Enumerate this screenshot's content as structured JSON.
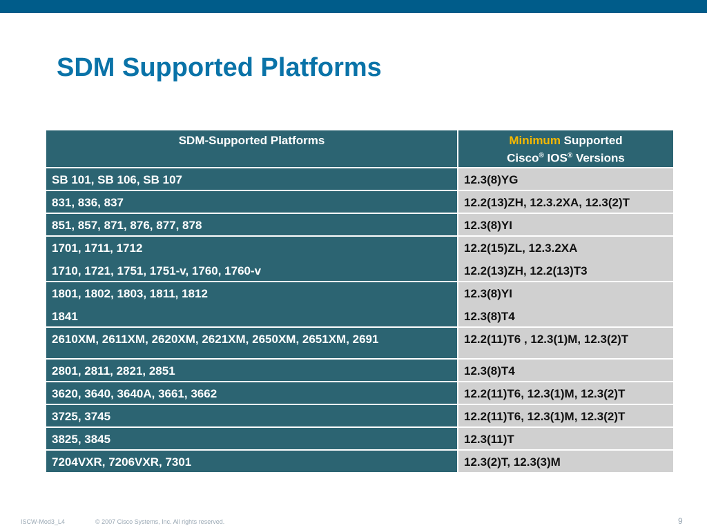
{
  "title": "SDM Supported Platforms",
  "table": {
    "header": {
      "platforms": "SDM-Supported Platforms",
      "versions_highlight": "Minimum",
      "versions_rest_line1": " Supported",
      "versions_line2_cisco": "Cisco",
      "versions_line2_ios": " IOS",
      "versions_line2_rest": " Versions",
      "registered_mark": "®"
    },
    "rows": [
      {
        "platforms": [
          "SB 101, SB 106, SB 107"
        ],
        "versions": [
          "12.3(8)YG"
        ]
      },
      {
        "platforms": [
          "831, 836, 837"
        ],
        "versions": [
          "12.2(13)ZH, 12.3.2XA, 12.3(2)T"
        ]
      },
      {
        "platforms": [
          "851, 857, 871, 876, 877, 878"
        ],
        "versions": [
          "12.3(8)YI"
        ]
      },
      {
        "platforms": [
          "1701, 1711, 1712",
          "1710, 1721, 1751, 1751-v, 1760, 1760-v"
        ],
        "versions": [
          "12.2(15)ZL, 12.3.2XA",
          "12.2(13)ZH, 12.2(13)T3"
        ]
      },
      {
        "platforms": [
          "1801, 1802, 1803, 1811, 1812",
          "1841"
        ],
        "versions": [
          "12.3(8)YI",
          "12.3(8)T4"
        ]
      },
      {
        "platforms": [
          "2610XM, 2611XM, 2620XM, 2621XM, 2650XM, 2651XM, 2691"
        ],
        "versions": [
          "12.2(11)T6 , 12.3(1)M, 12.3(2)T"
        ]
      },
      {
        "platforms": [
          "2801, 2811, 2821, 2851"
        ],
        "versions": [
          "12.3(8)T4"
        ]
      },
      {
        "platforms": [
          "3620, 3640, 3640A, 3661, 3662"
        ],
        "versions": [
          "12.2(11)T6, 12.3(1)M, 12.3(2)T"
        ]
      },
      {
        "platforms": [
          "3725, 3745"
        ],
        "versions": [
          "12.2(11)T6, 12.3(1)M, 12.3(2)T"
        ]
      },
      {
        "platforms": [
          "3825, 3845"
        ],
        "versions": [
          "12.3(11)T"
        ]
      },
      {
        "platforms": [
          "7204VXR, 7206VXR, 7301"
        ],
        "versions": [
          "12.3(2)T, 12.3(3)M"
        ]
      }
    ]
  },
  "footer": {
    "course_id": "ISCW-Mod3_L4",
    "copyright": "© 2007 Cisco Systems, Inc. All rights reserved.",
    "page_number": "9"
  },
  "colors": {
    "top_bar": "#005c8a",
    "title": "#0a73a8",
    "header_bg": "#2c6472",
    "platform_bg": "#2c6472",
    "version_bg": "#d0d0d0",
    "highlight": "#f5b800"
  }
}
